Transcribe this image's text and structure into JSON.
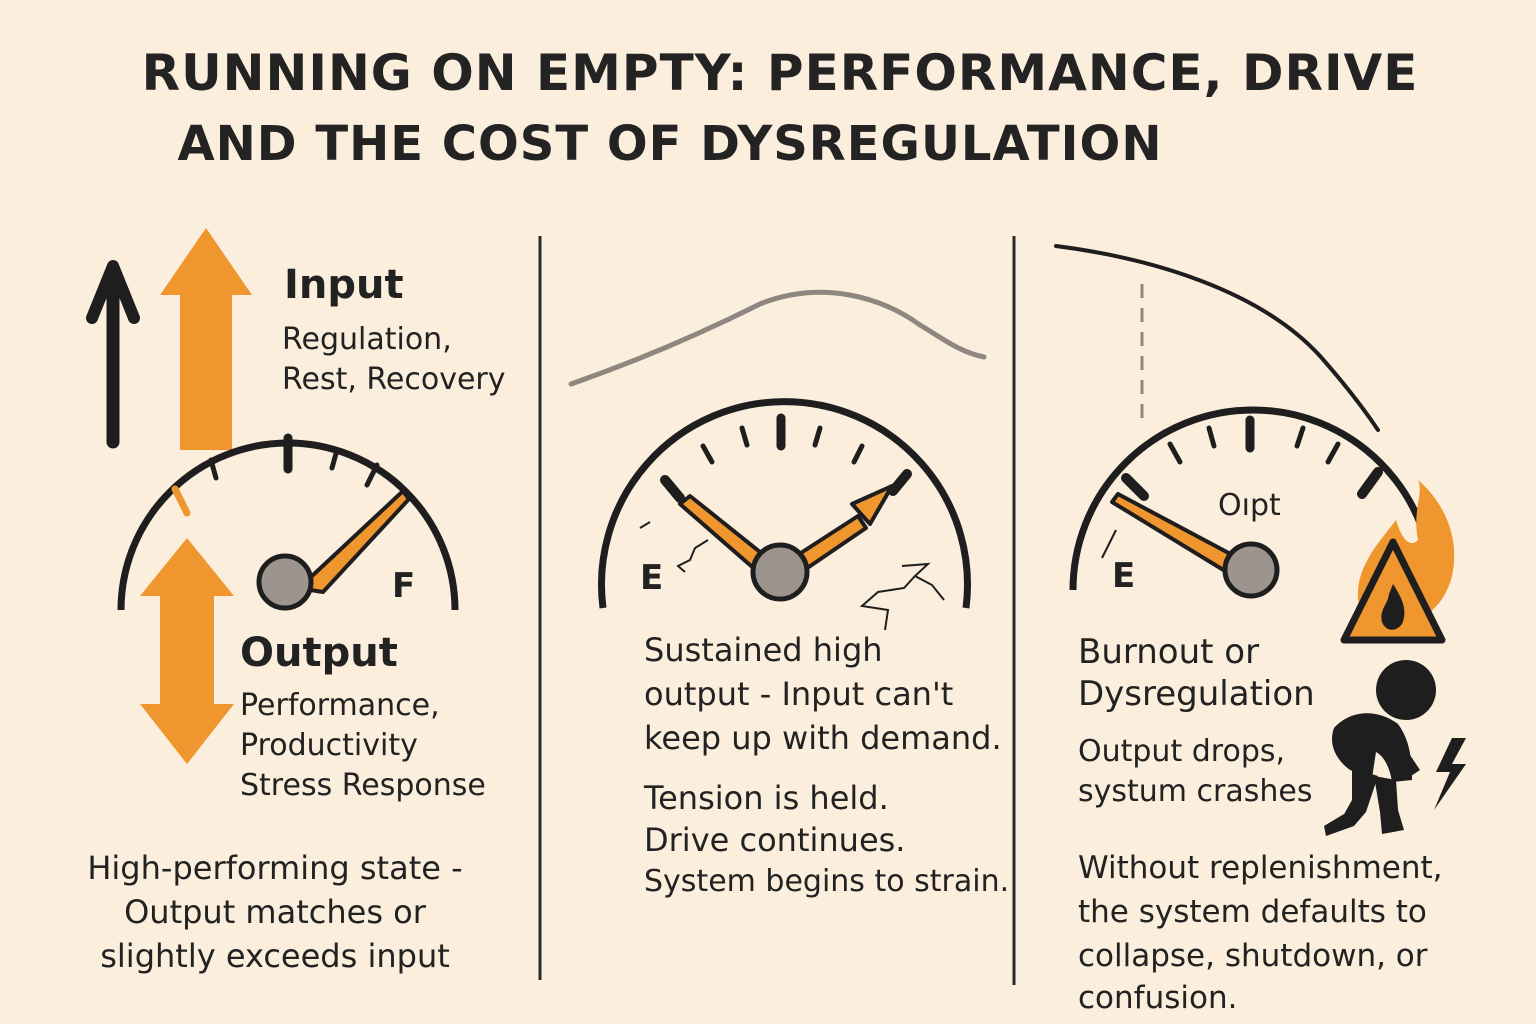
{
  "title": {
    "line1": "RUNNING ON EMPTY: PERFORMANCE, DRIVE",
    "line2": "AND THE COST OF DYSREGULATION"
  },
  "colors": {
    "background": "#fbeedd",
    "orange": "#f0962e",
    "ink": "#1e1e1e",
    "grey": "#9d958d"
  },
  "panel1": {
    "input_heading": "Input",
    "input_desc": [
      "Regulation,",
      "Rest, Recovery"
    ],
    "gauge_label_full": "F",
    "output_heading": "Output",
    "output_desc": [
      "Performance,",
      "Productivity",
      "Stress Response"
    ],
    "caption": [
      "High-performing state -",
      "Output matches or",
      "slightly exceeds input"
    ]
  },
  "panel2": {
    "gauge_label_empty": "E",
    "text1": [
      "Sustained high",
      "output - Input can't",
      "keep up with demand."
    ],
    "text2": [
      "Tension is held.",
      "Drive continues.",
      "System begins to strain."
    ]
  },
  "panel3": {
    "gauge_label_empty": "E",
    "gauge_label_output": "Oıpt",
    "heading": [
      "Burnout or",
      "Dysregulation"
    ],
    "sub": [
      "Output drops,",
      "systum crashes"
    ],
    "caption": [
      "Without replenishment,",
      "the system defaults to",
      "collapse, shutdown, or",
      "confusion."
    ]
  },
  "icons": [
    "up-arrow-icon",
    "orange-up-arrow-icon",
    "double-arrow-icon",
    "fuel-gauge-icon",
    "warning-fire-icon",
    "collapsing-person-icon",
    "lightning-icon"
  ]
}
